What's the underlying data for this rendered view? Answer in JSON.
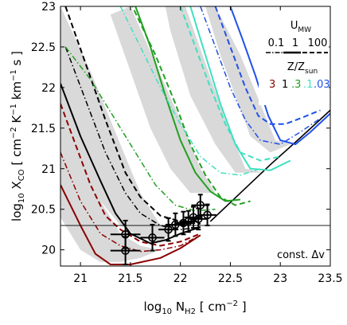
{
  "chart_data": {
    "type": "line",
    "xlabel": {
      "pre": "log",
      "pre_sub": "10",
      "main": " N",
      "main_sub": "H2",
      "post": " [ cm",
      "post_sup": "−2",
      "end": " ]"
    },
    "ylabel": {
      "pre": "log",
      "pre_sub": "10",
      "main": " X",
      "main_sub": "CO",
      "post": " [ cm",
      "sup1": "−2",
      "mid1": " K",
      "sup2": "−1",
      "mid2": " km",
      "sup3": "−1",
      "end": " s ]"
    },
    "xlim": [
      20.8,
      23.5
    ],
    "ylim": [
      19.8,
      23.0
    ],
    "xticks": [
      21,
      21.5,
      22,
      22.5,
      23,
      23.5
    ],
    "xtick_labels": [
      "21",
      "21.5",
      "22",
      "22.5",
      "23",
      "23.5"
    ],
    "yticks": [
      20,
      20.5,
      21,
      21.5,
      22,
      22.5,
      23
    ],
    "ytick_labels": [
      "20",
      "20.5",
      "21",
      "21.5",
      "22",
      "22.5",
      "23"
    ],
    "grid": false,
    "annotation": "const. Δv",
    "reference_line_y": 20.3,
    "legend": {
      "placement": "top-right",
      "umw_title": "U",
      "umw_sub": "MW",
      "umw_values": [
        "0.1",
        "1",
        "100"
      ],
      "z_title": "Z/Z",
      "z_sub": "sun",
      "z_values": [
        "3",
        "1",
        ".3",
        ".1",
        ".03"
      ],
      "z_colors": [
        "#8b0000",
        "#000000",
        "#22a022",
        "#40e0c0",
        "#2050e8"
      ]
    },
    "colors": {
      "dark_red": "#8b0000",
      "black": "#000000",
      "green": "#22a022",
      "cyan": "#40e0c0",
      "blue": "#2050e8",
      "band": "#d9d9d9"
    },
    "bands": [
      {
        "name": "Z=3 band",
        "upper": [
          [
            20.8,
            21.8
          ],
          [
            21.0,
            21.2
          ],
          [
            21.2,
            20.6
          ],
          [
            21.4,
            20.2
          ],
          [
            21.6,
            20.05
          ],
          [
            21.8,
            20.0
          ]
        ],
        "lower": [
          [
            21.8,
            20.0
          ],
          [
            21.6,
            19.9
          ],
          [
            21.4,
            19.85
          ],
          [
            21.2,
            19.85
          ],
          [
            21.0,
            20.0
          ],
          [
            20.8,
            20.4
          ]
        ]
      },
      {
        "name": "Z=1 band",
        "upper": [
          [
            20.8,
            23.0
          ],
          [
            21.1,
            22.2
          ],
          [
            21.4,
            21.3
          ],
          [
            21.6,
            20.7
          ],
          [
            21.8,
            20.3
          ],
          [
            21.95,
            20.25
          ]
        ],
        "lower": [
          [
            21.95,
            20.25
          ],
          [
            21.8,
            20.1
          ],
          [
            21.6,
            20.15
          ],
          [
            21.4,
            20.3
          ],
          [
            21.2,
            20.6
          ],
          [
            21.0,
            21.0
          ],
          [
            20.8,
            21.5
          ]
        ]
      },
      {
        "name": "Z=0.3 band",
        "upper": [
          [
            21.5,
            23.0
          ],
          [
            21.75,
            22.3
          ],
          [
            22.0,
            21.6
          ],
          [
            22.2,
            21.0
          ],
          [
            22.35,
            20.7
          ]
        ],
        "lower": [
          [
            22.35,
            20.7
          ],
          [
            22.1,
            20.7
          ],
          [
            21.9,
            21.0
          ],
          [
            21.7,
            21.5
          ],
          [
            21.5,
            22.2
          ],
          [
            21.3,
            22.9
          ]
        ]
      },
      {
        "name": "Z=0.1 band",
        "upper": [
          [
            22.05,
            23.0
          ],
          [
            22.25,
            22.3
          ],
          [
            22.45,
            21.6
          ],
          [
            22.65,
            21.0
          ],
          [
            22.85,
            20.95
          ]
        ],
        "lower": [
          [
            22.85,
            20.95
          ],
          [
            22.55,
            20.95
          ],
          [
            22.35,
            21.3
          ],
          [
            22.1,
            21.9
          ],
          [
            21.9,
            22.7
          ],
          [
            21.85,
            23.0
          ]
        ]
      },
      {
        "name": "Z=0.03 band",
        "upper": [
          [
            22.35,
            23.0
          ],
          [
            22.6,
            22.4
          ],
          [
            22.8,
            21.8
          ],
          [
            22.95,
            21.35
          ],
          [
            23.1,
            21.3
          ]
        ],
        "lower": [
          [
            23.1,
            21.3
          ],
          [
            22.9,
            21.2
          ],
          [
            22.7,
            21.4
          ],
          [
            22.55,
            21.9
          ],
          [
            22.4,
            22.4
          ],
          [
            22.25,
            23.0
          ]
        ]
      }
    ],
    "series": [
      {
        "color": "#000000",
        "style": "solid",
        "lw": 1.6,
        "points": [
          [
            22.3,
            20.35
          ],
          [
            22.6,
            20.7
          ],
          [
            22.9,
            21.05
          ],
          [
            23.2,
            21.38
          ],
          [
            23.5,
            21.72
          ]
        ]
      },
      {
        "color": "#8b0000",
        "style": "solid",
        "lw": 2.0,
        "points": [
          [
            20.8,
            20.8
          ],
          [
            21.0,
            20.3
          ],
          [
            21.15,
            19.95
          ],
          [
            21.3,
            19.82
          ],
          [
            21.5,
            19.82
          ],
          [
            21.8,
            19.9
          ],
          [
            22.0,
            20.02
          ],
          [
            22.2,
            20.18
          ]
        ]
      },
      {
        "color": "#8b0000",
        "style": "dashed",
        "lw": 2.0,
        "points": [
          [
            20.8,
            21.8
          ],
          [
            20.95,
            21.3
          ],
          [
            21.1,
            20.8
          ],
          [
            21.25,
            20.42
          ],
          [
            21.4,
            20.25
          ],
          [
            21.6,
            20.1
          ],
          [
            21.8,
            20.05
          ],
          [
            22.0,
            20.1
          ],
          [
            22.2,
            20.2
          ]
        ]
      },
      {
        "color": "#8b0000",
        "style": "dashdot",
        "lw": 1.5,
        "points": [
          [
            20.8,
            21.2
          ],
          [
            21.0,
            20.6
          ],
          [
            21.2,
            20.2
          ],
          [
            21.4,
            20.05
          ],
          [
            21.6,
            19.98
          ],
          [
            21.8,
            20.0
          ],
          [
            22.0,
            20.05
          ],
          [
            22.2,
            20.18
          ]
        ]
      },
      {
        "color": "#000000",
        "style": "solid",
        "lw": 2.0,
        "points": [
          [
            20.8,
            22.05
          ],
          [
            21.0,
            21.4
          ],
          [
            21.2,
            20.85
          ],
          [
            21.35,
            20.45
          ],
          [
            21.5,
            20.2
          ],
          [
            21.7,
            20.08
          ],
          [
            21.85,
            20.12
          ],
          [
            22.0,
            20.2
          ],
          [
            22.2,
            20.28
          ]
        ]
      },
      {
        "color": "#000000",
        "style": "dashed",
        "lw": 2.0,
        "points": [
          [
            20.85,
            23.0
          ],
          [
            21.05,
            22.3
          ],
          [
            21.25,
            21.6
          ],
          [
            21.45,
            20.95
          ],
          [
            21.6,
            20.65
          ],
          [
            21.8,
            20.42
          ],
          [
            22.0,
            20.35
          ],
          [
            22.2,
            20.32
          ]
        ]
      },
      {
        "color": "#000000",
        "style": "dashdot",
        "lw": 1.5,
        "points": [
          [
            20.85,
            22.5
          ],
          [
            21.05,
            21.85
          ],
          [
            21.25,
            21.2
          ],
          [
            21.45,
            20.7
          ],
          [
            21.6,
            20.45
          ],
          [
            21.8,
            20.3
          ],
          [
            22.0,
            20.25
          ],
          [
            22.2,
            20.28
          ]
        ]
      },
      {
        "color": "#22a022",
        "style": "solid",
        "lw": 2.0,
        "points": [
          [
            21.55,
            23.0
          ],
          [
            21.7,
            22.5
          ],
          [
            21.85,
            21.9
          ],
          [
            22.0,
            21.35
          ],
          [
            22.15,
            20.95
          ],
          [
            22.3,
            20.72
          ],
          [
            22.45,
            20.6
          ],
          [
            22.6,
            20.62
          ]
        ]
      },
      {
        "color": "#22a022",
        "style": "dashed",
        "lw": 2.0,
        "points": [
          [
            21.5,
            23.05
          ],
          [
            21.75,
            22.4
          ],
          [
            21.95,
            21.8
          ],
          [
            22.1,
            21.3
          ],
          [
            22.25,
            20.92
          ],
          [
            22.4,
            20.65
          ],
          [
            22.55,
            20.55
          ],
          [
            22.7,
            20.6
          ]
        ]
      },
      {
        "color": "#22a022",
        "style": "dashdot",
        "lw": 1.5,
        "points": [
          [
            20.85,
            22.5
          ],
          [
            21.1,
            22.1
          ],
          [
            21.35,
            21.6
          ],
          [
            21.55,
            21.2
          ],
          [
            21.75,
            20.8
          ],
          [
            21.95,
            20.55
          ],
          [
            22.15,
            20.48
          ],
          [
            22.35,
            20.5
          ]
        ]
      },
      {
        "color": "#40e0c0",
        "style": "solid",
        "lw": 2.0,
        "points": [
          [
            22.1,
            23.0
          ],
          [
            22.25,
            22.4
          ],
          [
            22.4,
            21.8
          ],
          [
            22.55,
            21.3
          ],
          [
            22.7,
            21.0
          ],
          [
            22.9,
            20.98
          ],
          [
            23.1,
            21.1
          ]
        ]
      },
      {
        "color": "#40e0c0",
        "style": "dashed",
        "lw": 2.0,
        "points": [
          [
            22.0,
            23.0
          ],
          [
            22.15,
            22.5
          ],
          [
            22.3,
            22.0
          ],
          [
            22.45,
            21.55
          ],
          [
            22.6,
            21.2
          ],
          [
            22.8,
            21.1
          ],
          [
            23.0,
            21.15
          ]
        ]
      },
      {
        "color": "#40e0c0",
        "style": "dashdot",
        "lw": 1.5,
        "points": [
          [
            21.4,
            23.0
          ],
          [
            21.6,
            22.5
          ],
          [
            21.8,
            22.0
          ],
          [
            22.0,
            21.55
          ],
          [
            22.2,
            21.15
          ],
          [
            22.4,
            20.95
          ],
          [
            22.6,
            20.92
          ],
          [
            22.8,
            21.0
          ]
        ]
      },
      {
        "color": "#2050e8",
        "style": "solid",
        "lw": 2.0,
        "points": [
          [
            22.5,
            23.0
          ],
          [
            22.62,
            22.6
          ],
          [
            22.75,
            22.15
          ],
          [
            22.88,
            21.65
          ],
          [
            23.0,
            21.35
          ],
          [
            23.15,
            21.3
          ],
          [
            23.3,
            21.45
          ],
          [
            23.5,
            21.68
          ]
        ]
      },
      {
        "color": "#2050e8",
        "style": "dashed",
        "lw": 2.0,
        "points": [
          [
            22.35,
            23.0
          ],
          [
            22.5,
            22.5
          ],
          [
            22.65,
            22.0
          ],
          [
            22.78,
            21.65
          ],
          [
            22.9,
            21.55
          ],
          [
            23.05,
            21.55
          ],
          [
            23.2,
            21.62
          ],
          [
            23.4,
            21.72
          ]
        ]
      },
      {
        "color": "#2050e8",
        "style": "dashdot",
        "lw": 1.5,
        "points": [
          [
            22.2,
            23.0
          ],
          [
            22.35,
            22.5
          ],
          [
            22.5,
            22.0
          ],
          [
            22.65,
            21.6
          ],
          [
            22.8,
            21.35
          ],
          [
            23.0,
            21.3
          ],
          [
            23.2,
            21.45
          ],
          [
            23.4,
            21.62
          ]
        ]
      }
    ],
    "observations": [
      {
        "x": 21.45,
        "y": 20.19,
        "xerr": 0.15,
        "yerr": 0.17
      },
      {
        "x": 21.45,
        "y": 19.99,
        "xerr": 0.15,
        "yerr": 0.17
      },
      {
        "x": 21.72,
        "y": 20.15,
        "xerr": 0.12,
        "yerr": 0.16
      },
      {
        "x": 21.88,
        "y": 20.25,
        "xerr": 0.1,
        "yerr": 0.14
      },
      {
        "x": 21.95,
        "y": 20.31,
        "xerr": 0.1,
        "yerr": 0.14
      },
      {
        "x": 22.03,
        "y": 20.33,
        "xerr": 0.09,
        "yerr": 0.14
      },
      {
        "x": 22.08,
        "y": 20.35,
        "xerr": 0.09,
        "yerr": 0.13
      },
      {
        "x": 22.13,
        "y": 20.4,
        "xerr": 0.09,
        "yerr": 0.13
      },
      {
        "x": 22.18,
        "y": 20.38,
        "xerr": 0.09,
        "yerr": 0.13
      },
      {
        "x": 22.2,
        "y": 20.55,
        "xerr": 0.09,
        "yerr": 0.13
      },
      {
        "x": 22.27,
        "y": 20.43,
        "xerr": 0.09,
        "yerr": 0.13
      }
    ]
  }
}
